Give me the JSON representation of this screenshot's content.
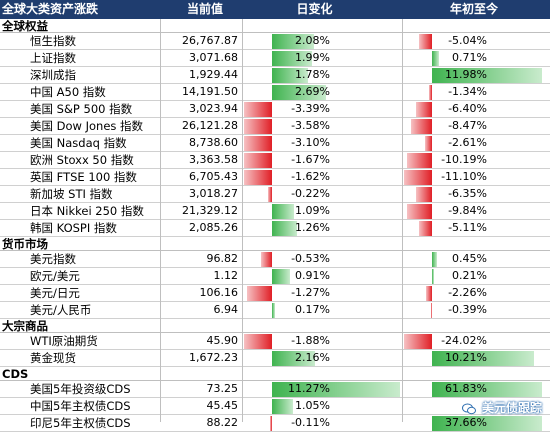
{
  "header": {
    "title": "全球大类资产涨跌",
    "col_value": "当前值",
    "col_day": "日变化",
    "col_ytd": "年初至今"
  },
  "sections": [
    {
      "label": "全球权益",
      "rows": [
        {
          "name": "恒生指数",
          "value": "26,767.87",
          "day": "2.08%",
          "day_num": 2.08,
          "ytd": "-5.04%",
          "ytd_num": -5.04
        },
        {
          "name": "上证指数",
          "value": "3,071.68",
          "day": "1.99%",
          "day_num": 1.99,
          "ytd": "0.71%",
          "ytd_num": 0.71
        },
        {
          "name": "深圳成指",
          "value": "1,929.44",
          "day": "1.78%",
          "day_num": 1.78,
          "ytd": "11.98%",
          "ytd_num": 11.98
        },
        {
          "name": "中国 A50 指数",
          "value": "14,191.50",
          "day": "2.69%",
          "day_num": 2.69,
          "ytd": "-1.34%",
          "ytd_num": -1.34
        },
        {
          "name": "美国 S&P 500 指数",
          "value": "3,023.94",
          "day": "-3.39%",
          "day_num": -3.39,
          "ytd": "-6.40%",
          "ytd_num": -6.4
        },
        {
          "name": "美国 Dow Jones 指数",
          "value": "26,121.28",
          "day": "-3.58%",
          "day_num": -3.58,
          "ytd": "-8.47%",
          "ytd_num": -8.47
        },
        {
          "name": "美国 Nasdaq 指数",
          "value": "8,738.60",
          "day": "-3.10%",
          "day_num": -3.1,
          "ytd": "-2.61%",
          "ytd_num": -2.61
        },
        {
          "name": "欧洲 Stoxx 50 指数",
          "value": "3,363.58",
          "day": "-1.67%",
          "day_num": -1.67,
          "ytd": "-10.19%",
          "ytd_num": -10.19
        },
        {
          "name": "英国 FTSE 100 指数",
          "value": "6,705.43",
          "day": "-1.62%",
          "day_num": -1.62,
          "ytd": "-11.10%",
          "ytd_num": -11.1
        },
        {
          "name": "新加坡 STI 指数",
          "value": "3,018.27",
          "day": "-0.22%",
          "day_num": -0.22,
          "ytd": "-6.35%",
          "ytd_num": -6.35
        },
        {
          "name": "日本 Nikkei 250 指数",
          "value": "21,329.12",
          "day": "1.09%",
          "day_num": 1.09,
          "ytd": "-9.84%",
          "ytd_num": -9.84
        },
        {
          "name": "韩国 KOSPI 指数",
          "value": "2,085.26",
          "day": "1.26%",
          "day_num": 1.26,
          "ytd": "-5.11%",
          "ytd_num": -5.11
        }
      ]
    },
    {
      "label": "货币市场",
      "rows": [
        {
          "name": "美元指数",
          "value": "96.82",
          "day": "-0.53%",
          "day_num": -0.53,
          "ytd": "0.45%",
          "ytd_num": 0.45
        },
        {
          "name": "欧元/美元",
          "value": "1.12",
          "day": "0.91%",
          "day_num": 0.91,
          "ytd": "0.21%",
          "ytd_num": 0.21
        },
        {
          "name": "美元/日元",
          "value": "106.16",
          "day": "-1.27%",
          "day_num": -1.27,
          "ytd": "-2.26%",
          "ytd_num": -2.26
        },
        {
          "name": "美元/人民币",
          "value": "6.94",
          "day": "0.17%",
          "day_num": 0.17,
          "ytd": "-0.39%",
          "ytd_num": -0.39
        }
      ]
    },
    {
      "label": "大宗商品",
      "rows": [
        {
          "name": "WTI原油期货",
          "value": "45.90",
          "day": "-1.88%",
          "day_num": -1.88,
          "ytd": "-24.02%",
          "ytd_num": -24.02
        },
        {
          "name": "黄金现货",
          "value": "1,672.23",
          "day": "2.16%",
          "day_num": 2.16,
          "ytd": "10.21%",
          "ytd_num": 10.21
        }
      ]
    },
    {
      "label": "CDS",
      "rows": [
        {
          "name": "美国5年投资级CDS",
          "value": "73.25",
          "day": "11.27%",
          "day_num": 11.27,
          "ytd": "61.83%",
          "ytd_num": 61.83
        },
        {
          "name": "中国5年主权债CDS",
          "value": "45.45",
          "day": "1.05%",
          "day_num": 1.05,
          "ytd": "",
          "ytd_num": 0
        },
        {
          "name": "印尼5年主权债CDS",
          "value": "88.22",
          "day": "-0.11%",
          "day_num": -0.11,
          "ytd": "37.66%",
          "ytd_num": 37.66
        }
      ]
    }
  ],
  "colors": {
    "header_bg": "#1f3d6f",
    "positive": "#3fb34f",
    "negative": "#e01f26"
  },
  "watermark": "美元债跟踪"
}
